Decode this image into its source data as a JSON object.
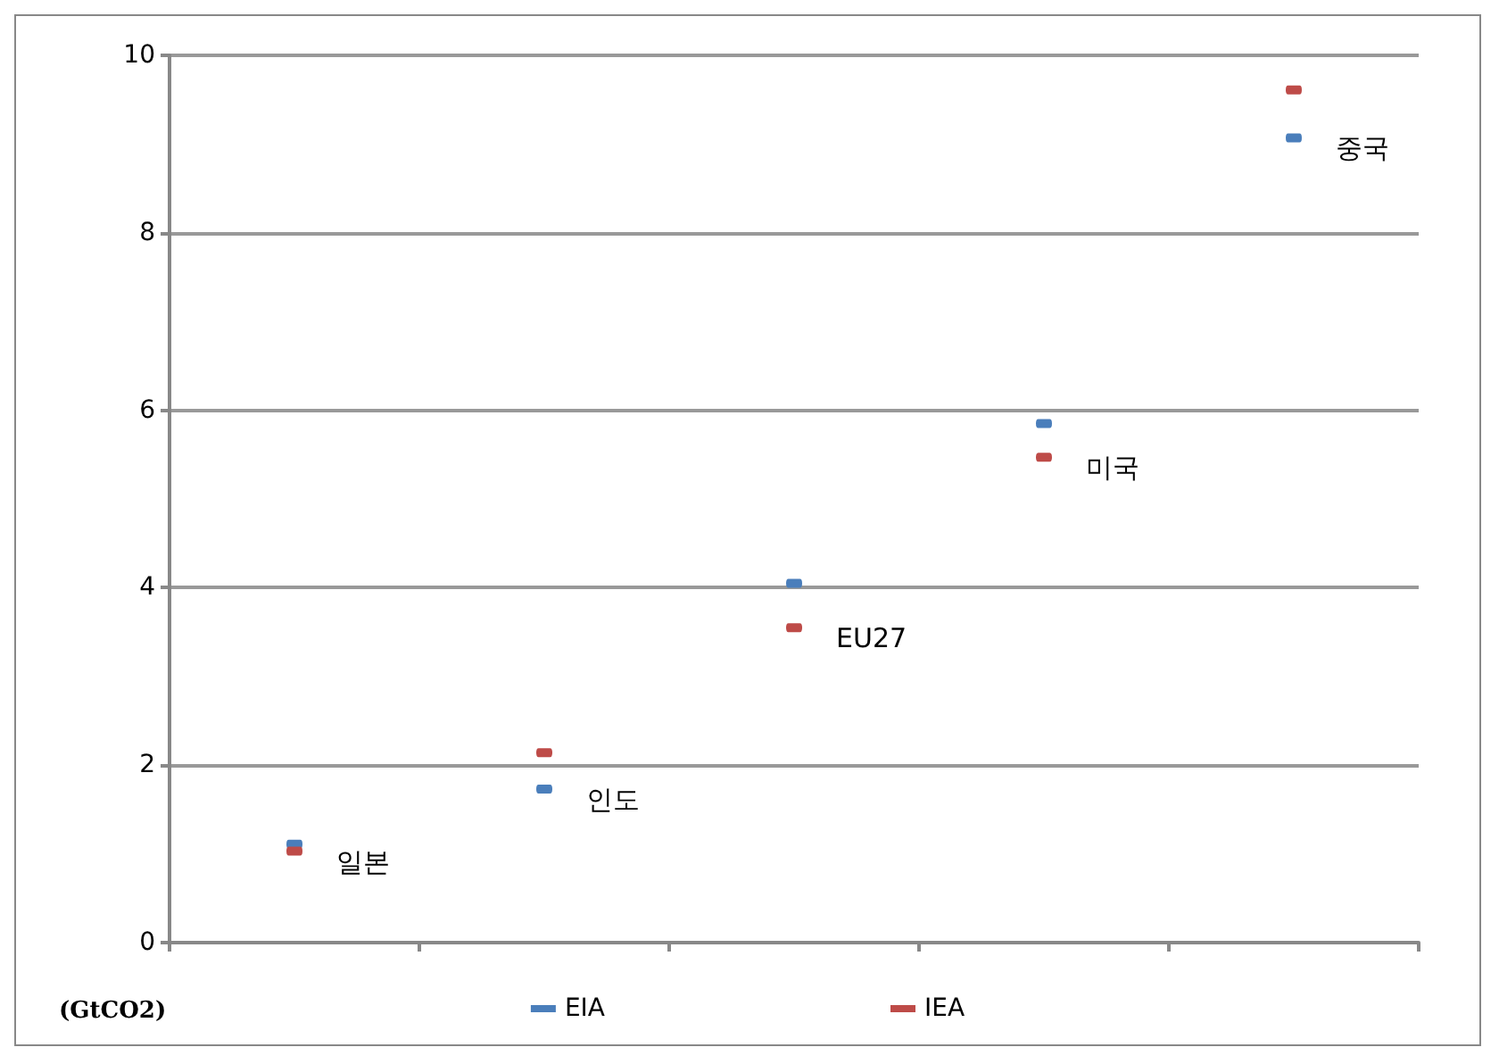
{
  "chart_data": {
    "type": "scatter",
    "ylabel": "(GtCO2)",
    "categories": [
      "일본",
      "인도",
      "EU27",
      "미국",
      "중국"
    ],
    "series": [
      {
        "name": "EIA",
        "color": "#4a7ebb",
        "values": [
          1.11,
          1.73,
          4.05,
          5.85,
          9.07
        ]
      },
      {
        "name": "IEA",
        "color": "#be4b48",
        "values": [
          1.03,
          2.14,
          3.55,
          5.47,
          9.61
        ]
      }
    ],
    "ylim": [
      0,
      10
    ],
    "yticks": [
      0,
      2,
      4,
      6,
      8,
      10
    ],
    "grid": "y",
    "legend": "bottom",
    "tick_labels": "y"
  }
}
